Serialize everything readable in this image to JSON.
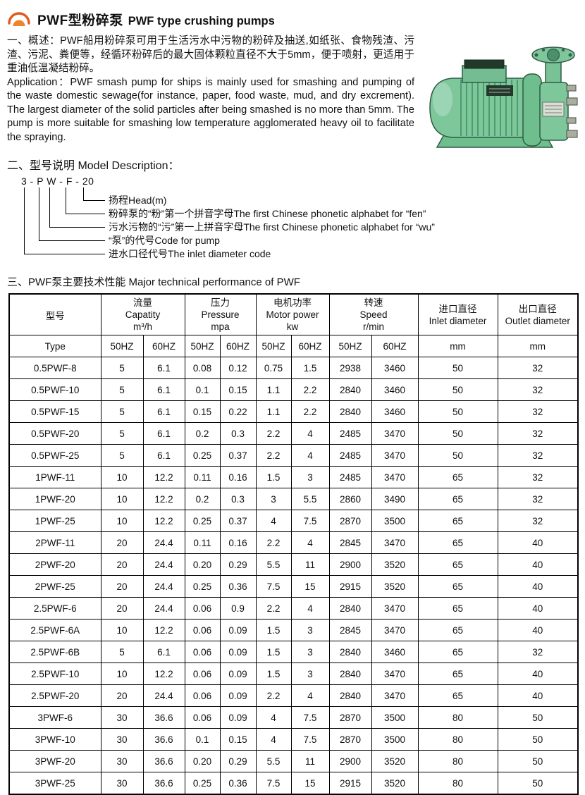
{
  "colors": {
    "accent_orange": "#e8762a",
    "pump_green": "#7ec79b"
  },
  "header": {
    "title_zh": "PWF型粉碎泵",
    "title_en": "PWF type crushing pumps"
  },
  "overview": {
    "zh": "一、概述：PWF船用粉碎泵可用于生活污水中污物的粉碎及抽送,如纸张、食物残渣、污渣、污泥、粪便等，经循环粉碎后的最大固体颗粒直径不大于5mm，便于喷射，更适用于重油低温凝结粉碎。",
    "en": "Application：PWF smash pump for ships is mainly used for smashing and pumping of the waste domestic sewage(for instance, paper, food waste, mud, and dry excrement). The largest diameter of the solid particles after being smashed is no more than 5mm. The pump is more suitable for smashing low temperature agglomerated heavy oil to facilitate the spraying."
  },
  "model_section": {
    "heading": "二、型号说明  Model Description：",
    "code": "3 - P W - F - 20",
    "labels": [
      "扬程Head(m)",
      "粉碎泵的“粉”第一个拼音字母The first Chinese phonetic alphabet for “fen”",
      "污水污物的“污”第一上拼音字母The first Chinese phonetic alphabet for “wu”",
      "“泵”的代号Code for pump",
      "进水口径代号The inlet diameter code"
    ]
  },
  "table_section": {
    "heading": "三、PWF泵主要技术性能 Major technical performance of PWF"
  },
  "table": {
    "col_model": {
      "zh": "型号",
      "en": "Type"
    },
    "groups": [
      {
        "zh": "流量",
        "en": "Capatity",
        "unit": "m³/h"
      },
      {
        "zh": "压力",
        "en": "Pressure",
        "unit": "mpa"
      },
      {
        "zh": "电机功率",
        "en": "Motor power",
        "unit": "kw"
      },
      {
        "zh": "转速",
        "en": "Speed",
        "unit": "r/min"
      }
    ],
    "freq": [
      "50HZ",
      "60HZ"
    ],
    "diameter_cols": [
      {
        "zh": "进口直径",
        "en": "Inlet diameter",
        "unit": "mm"
      },
      {
        "zh": "出口直径",
        "en": "Outlet diameter",
        "unit": "mm"
      }
    ],
    "rows": [
      [
        "0.5PWF-8",
        "5",
        "6.1",
        "0.08",
        "0.12",
        "0.75",
        "1.5",
        "2938",
        "3460",
        "50",
        "32"
      ],
      [
        "0.5PWF-10",
        "5",
        "6.1",
        "0.1",
        "0.15",
        "1.1",
        "2.2",
        "2840",
        "3460",
        "50",
        "32"
      ],
      [
        "0.5PWF-15",
        "5",
        "6.1",
        "0.15",
        "0.22",
        "1.1",
        "2.2",
        "2840",
        "3460",
        "50",
        "32"
      ],
      [
        "0.5PWF-20",
        "5",
        "6.1",
        "0.2",
        "0.3",
        "2.2",
        "4",
        "2485",
        "3470",
        "50",
        "32"
      ],
      [
        "0.5PWF-25",
        "5",
        "6.1",
        "0.25",
        "0.37",
        "2.2",
        "4",
        "2485",
        "3470",
        "50",
        "32"
      ],
      [
        "1PWF-11",
        "10",
        "12.2",
        "0.11",
        "0.16",
        "1.5",
        "3",
        "2485",
        "3470",
        "65",
        "32"
      ],
      [
        "1PWF-20",
        "10",
        "12.2",
        "0.2",
        "0.3",
        "3",
        "5.5",
        "2860",
        "3490",
        "65",
        "32"
      ],
      [
        "1PWF-25",
        "10",
        "12.2",
        "0.25",
        "0.37",
        "4",
        "7.5",
        "2870",
        "3500",
        "65",
        "32"
      ],
      [
        "2PWF-11",
        "20",
        "24.4",
        "0.11",
        "0.16",
        "2.2",
        "4",
        "2845",
        "3470",
        "65",
        "40"
      ],
      [
        "2PWF-20",
        "20",
        "24.4",
        "0.20",
        "0.29",
        "5.5",
        "11",
        "2900",
        "3520",
        "65",
        "40"
      ],
      [
        "2PWF-25",
        "20",
        "24.4",
        "0.25",
        "0.36",
        "7.5",
        "15",
        "2915",
        "3520",
        "65",
        "40"
      ],
      [
        "2.5PWF-6",
        "20",
        "24.4",
        "0.06",
        "0.9",
        "2.2",
        "4",
        "2840",
        "3470",
        "65",
        "40"
      ],
      [
        "2.5PWF-6A",
        "10",
        "12.2",
        "0.06",
        "0.09",
        "1.5",
        "3",
        "2845",
        "3470",
        "65",
        "40"
      ],
      [
        "2.5PWF-6B",
        "5",
        "6.1",
        "0.06",
        "0.09",
        "1.5",
        "3",
        "2840",
        "3460",
        "65",
        "32"
      ],
      [
        "2.5PWF-10",
        "10",
        "12.2",
        "0.06",
        "0.09",
        "1.5",
        "3",
        "2840",
        "3470",
        "65",
        "40"
      ],
      [
        "2.5PWF-20",
        "20",
        "24.4",
        "0.06",
        "0.09",
        "2.2",
        "4",
        "2840",
        "3470",
        "65",
        "40"
      ],
      [
        "3PWF-6",
        "30",
        "36.6",
        "0.06",
        "0.09",
        "4",
        "7.5",
        "2870",
        "3500",
        "80",
        "50"
      ],
      [
        "3PWF-10",
        "30",
        "36.6",
        "0.1",
        "0.15",
        "4",
        "7.5",
        "2870",
        "3500",
        "80",
        "50"
      ],
      [
        "3PWF-20",
        "30",
        "36.6",
        "0.20",
        "0.29",
        "5.5",
        "11",
        "2900",
        "3520",
        "80",
        "50"
      ],
      [
        "3PWF-25",
        "30",
        "36.6",
        "0.25",
        "0.36",
        "7.5",
        "15",
        "2915",
        "3520",
        "80",
        "50"
      ]
    ]
  }
}
